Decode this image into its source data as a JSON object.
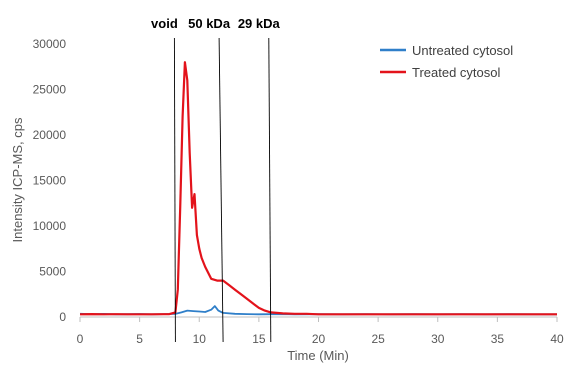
{
  "chart_data": {
    "type": "line",
    "xlabel": "Time (Min)",
    "ylabel": "Intensity ICP-MS, cps",
    "xlim": [
      0,
      40
    ],
    "ylim": [
      0,
      30000
    ],
    "x_ticks": [
      "0",
      "5",
      "10",
      "15",
      "20",
      "25",
      "30",
      "35",
      "40"
    ],
    "y_ticks": [
      "0",
      "5000",
      "10000",
      "15000",
      "20000",
      "25000",
      "30000"
    ],
    "grid": false,
    "legend_position": "top-right",
    "series": [
      {
        "name": "Untreated cytosol",
        "color": "#2f7fc9",
        "x": [
          0,
          1,
          2,
          3,
          4,
          5,
          6,
          7,
          8,
          8.5,
          9,
          9.5,
          10,
          10.5,
          11,
          11.3,
          11.6,
          12,
          13,
          14,
          15,
          16,
          17,
          18,
          20,
          22,
          24,
          26,
          28,
          30,
          32,
          34,
          36,
          38,
          40
        ],
        "y": [
          350,
          320,
          340,
          300,
          310,
          330,
          300,
          320,
          340,
          500,
          700,
          650,
          600,
          550,
          800,
          1200,
          700,
          450,
          350,
          320,
          300,
          310,
          320,
          300,
          310,
          300,
          320,
          300,
          310,
          300,
          320,
          300,
          310,
          300,
          300
        ]
      },
      {
        "name": "Treated cytosol",
        "color": "#e3131b",
        "x": [
          0,
          1,
          2,
          3,
          4,
          5,
          6,
          7,
          7.5,
          8,
          8.2,
          8.4,
          8.6,
          8.8,
          9.0,
          9.2,
          9.4,
          9.6,
          9.8,
          10.0,
          10.2,
          10.5,
          11.0,
          11.5,
          12.0,
          12.5,
          13.0,
          13.5,
          14.0,
          14.5,
          15.0,
          15.5,
          16.0,
          17.0,
          18.0,
          19.0,
          20.0,
          25.0,
          30.0,
          35.0,
          40.0
        ],
        "y": [
          300,
          320,
          300,
          310,
          300,
          300,
          300,
          310,
          320,
          500,
          3000,
          12000,
          22000,
          28000,
          26000,
          18000,
          12000,
          13500,
          9000,
          7500,
          6500,
          5500,
          4200,
          4000,
          4000,
          3500,
          3000,
          2500,
          2000,
          1500,
          1000,
          700,
          500,
          400,
          350,
          350,
          300,
          300,
          300,
          300,
          300
        ]
      }
    ],
    "annotations": [
      {
        "label": "void",
        "x": 8.0
      },
      {
        "label": "50 kDa",
        "x": 12.0
      },
      {
        "label": "29 kDa",
        "x": 16.0
      }
    ]
  }
}
